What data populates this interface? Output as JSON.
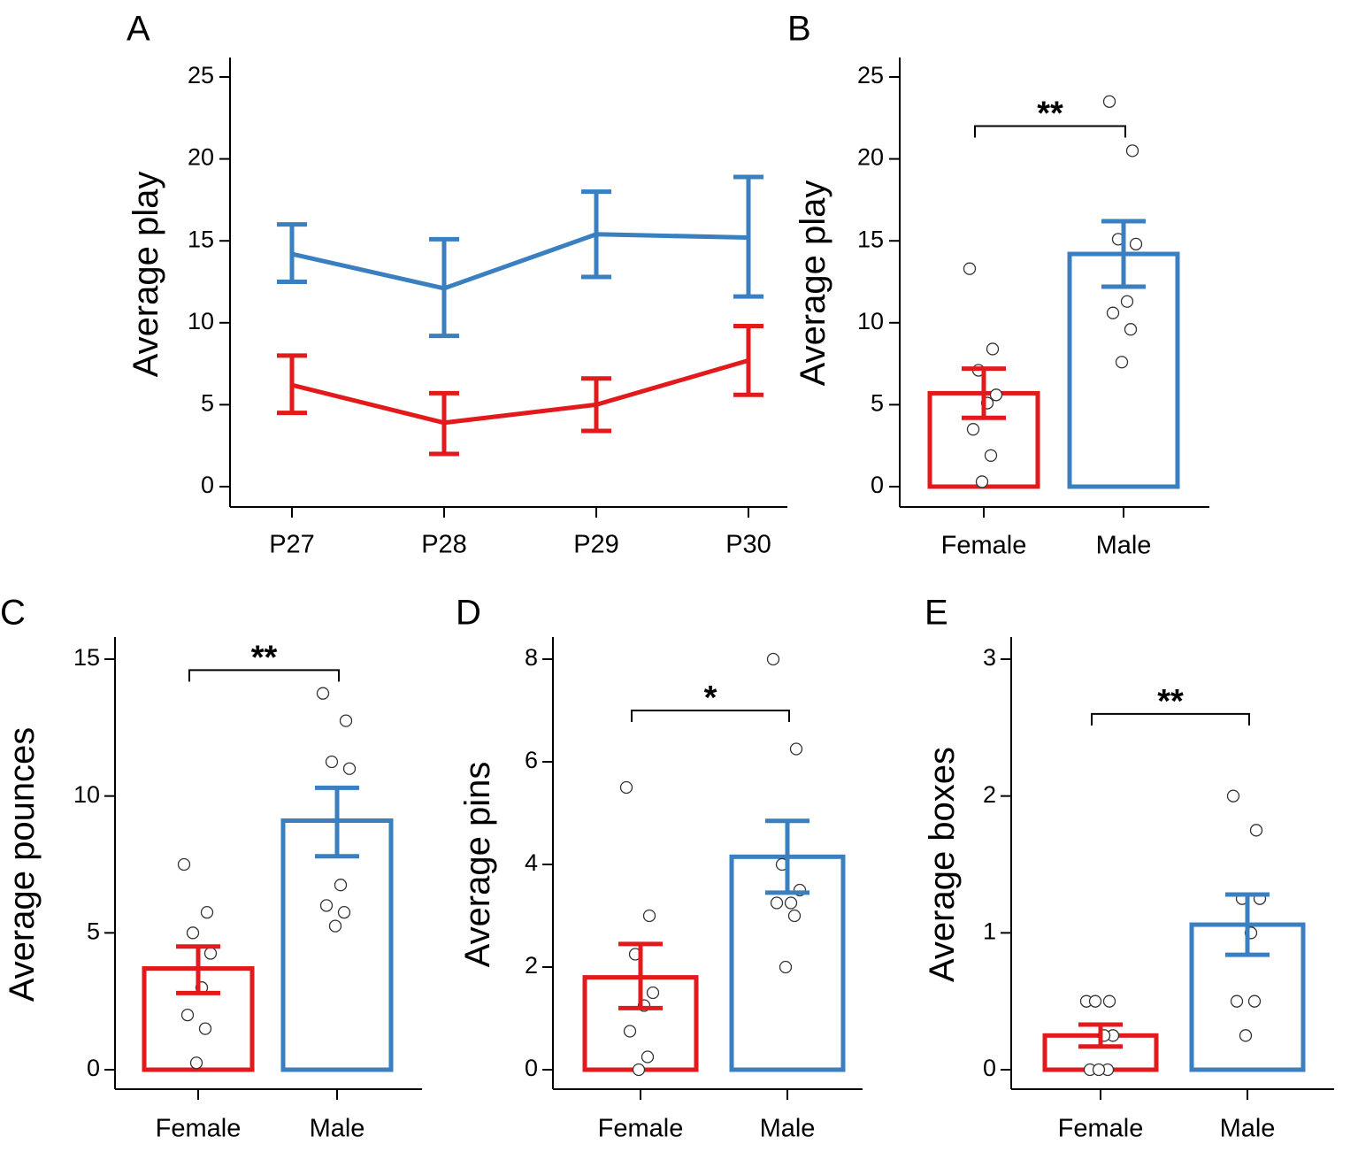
{
  "colors": {
    "female": "#e31a1c",
    "male": "#3a7fc0"
  },
  "chart_data": [
    {
      "panel": "A",
      "type": "line",
      "ylabel": "Average play",
      "categories": [
        "P27",
        "P28",
        "P29",
        "P30"
      ],
      "ylim": [
        0,
        25
      ],
      "yticks": [
        0,
        5,
        10,
        15,
        20,
        25
      ],
      "series": [
        {
          "color_key": "male",
          "values": [
            14.2,
            12.1,
            15.4,
            15.2
          ],
          "err_low": [
            12.5,
            9.2,
            12.8,
            11.6
          ],
          "err_high": [
            16.0,
            15.1,
            18.0,
            18.9
          ]
        },
        {
          "color_key": "female",
          "values": [
            6.2,
            3.9,
            5.0,
            7.7
          ],
          "err_low": [
            4.5,
            2.0,
            3.4,
            5.6
          ],
          "err_high": [
            8.0,
            5.7,
            6.6,
            9.8
          ]
        }
      ]
    },
    {
      "panel": "B",
      "type": "bar",
      "ylabel": "Average play",
      "categories": [
        "Female",
        "Male"
      ],
      "ylim": [
        0,
        25
      ],
      "yticks": [
        0,
        5,
        10,
        15,
        20,
        25
      ],
      "bars": [
        {
          "color_key": "female",
          "mean": 5.7,
          "err_low": 4.2,
          "err_high": 7.2,
          "points": [
            13.3,
            8.4,
            7.1,
            5.6,
            5.1,
            3.5,
            1.9,
            0.3
          ]
        },
        {
          "color_key": "male",
          "mean": 14.2,
          "err_low": 12.2,
          "err_high": 16.2,
          "points": [
            23.5,
            20.5,
            15.1,
            14.8,
            11.3,
            10.6,
            9.6,
            7.6
          ]
        }
      ],
      "significance": {
        "label": "**",
        "y": 22.0
      }
    },
    {
      "panel": "C",
      "type": "bar",
      "ylabel": "Average pounces",
      "categories": [
        "Female",
        "Male"
      ],
      "ylim": [
        0,
        15
      ],
      "yticks": [
        0,
        5,
        10,
        15
      ],
      "bars": [
        {
          "color_key": "female",
          "mean": 3.7,
          "err_low": 2.8,
          "err_high": 4.5,
          "points": [
            7.5,
            5.75,
            5.0,
            4.25,
            3.0,
            2.0,
            1.5,
            0.25
          ]
        },
        {
          "color_key": "male",
          "mean": 9.1,
          "err_low": 7.8,
          "err_high": 10.3,
          "points": [
            13.75,
            12.75,
            11.25,
            11.0,
            6.75,
            6.0,
            5.75,
            5.25
          ]
        }
      ],
      "significance": {
        "label": "**",
        "y": 14.6
      }
    },
    {
      "panel": "D",
      "type": "bar",
      "ylabel": "Average pins",
      "categories": [
        "Female",
        "Male"
      ],
      "ylim": [
        0,
        8
      ],
      "yticks": [
        0,
        2,
        4,
        6,
        8
      ],
      "bars": [
        {
          "color_key": "female",
          "mean": 1.8,
          "err_low": 1.2,
          "err_high": 2.45,
          "points": [
            5.5,
            3.0,
            2.25,
            1.5,
            1.25,
            0.75,
            0.25,
            0.0
          ]
        },
        {
          "color_key": "male",
          "mean": 4.15,
          "err_low": 3.45,
          "err_high": 4.85,
          "points": [
            8.0,
            6.25,
            4.0,
            3.5,
            3.25,
            3.25,
            3.0,
            2.0
          ]
        }
      ],
      "significance": {
        "label": "*",
        "y": 7.0
      }
    },
    {
      "panel": "E",
      "type": "bar",
      "ylabel": "Average boxes",
      "categories": [
        "Female",
        "Male"
      ],
      "ylim": [
        0,
        3
      ],
      "yticks": [
        0,
        1,
        2,
        3
      ],
      "bars": [
        {
          "color_key": "female",
          "mean": 0.25,
          "err_low": 0.17,
          "err_high": 0.33,
          "points": [
            0.5,
            0.5,
            0.5,
            0.25,
            0.25,
            0.0,
            0.0,
            0.0
          ]
        },
        {
          "color_key": "male",
          "mean": 1.06,
          "err_low": 0.84,
          "err_high": 1.28,
          "points": [
            2.0,
            1.75,
            1.25,
            1.25,
            1.0,
            0.5,
            0.5,
            0.25
          ]
        }
      ],
      "significance": {
        "label": "**",
        "y": 2.6
      }
    }
  ]
}
